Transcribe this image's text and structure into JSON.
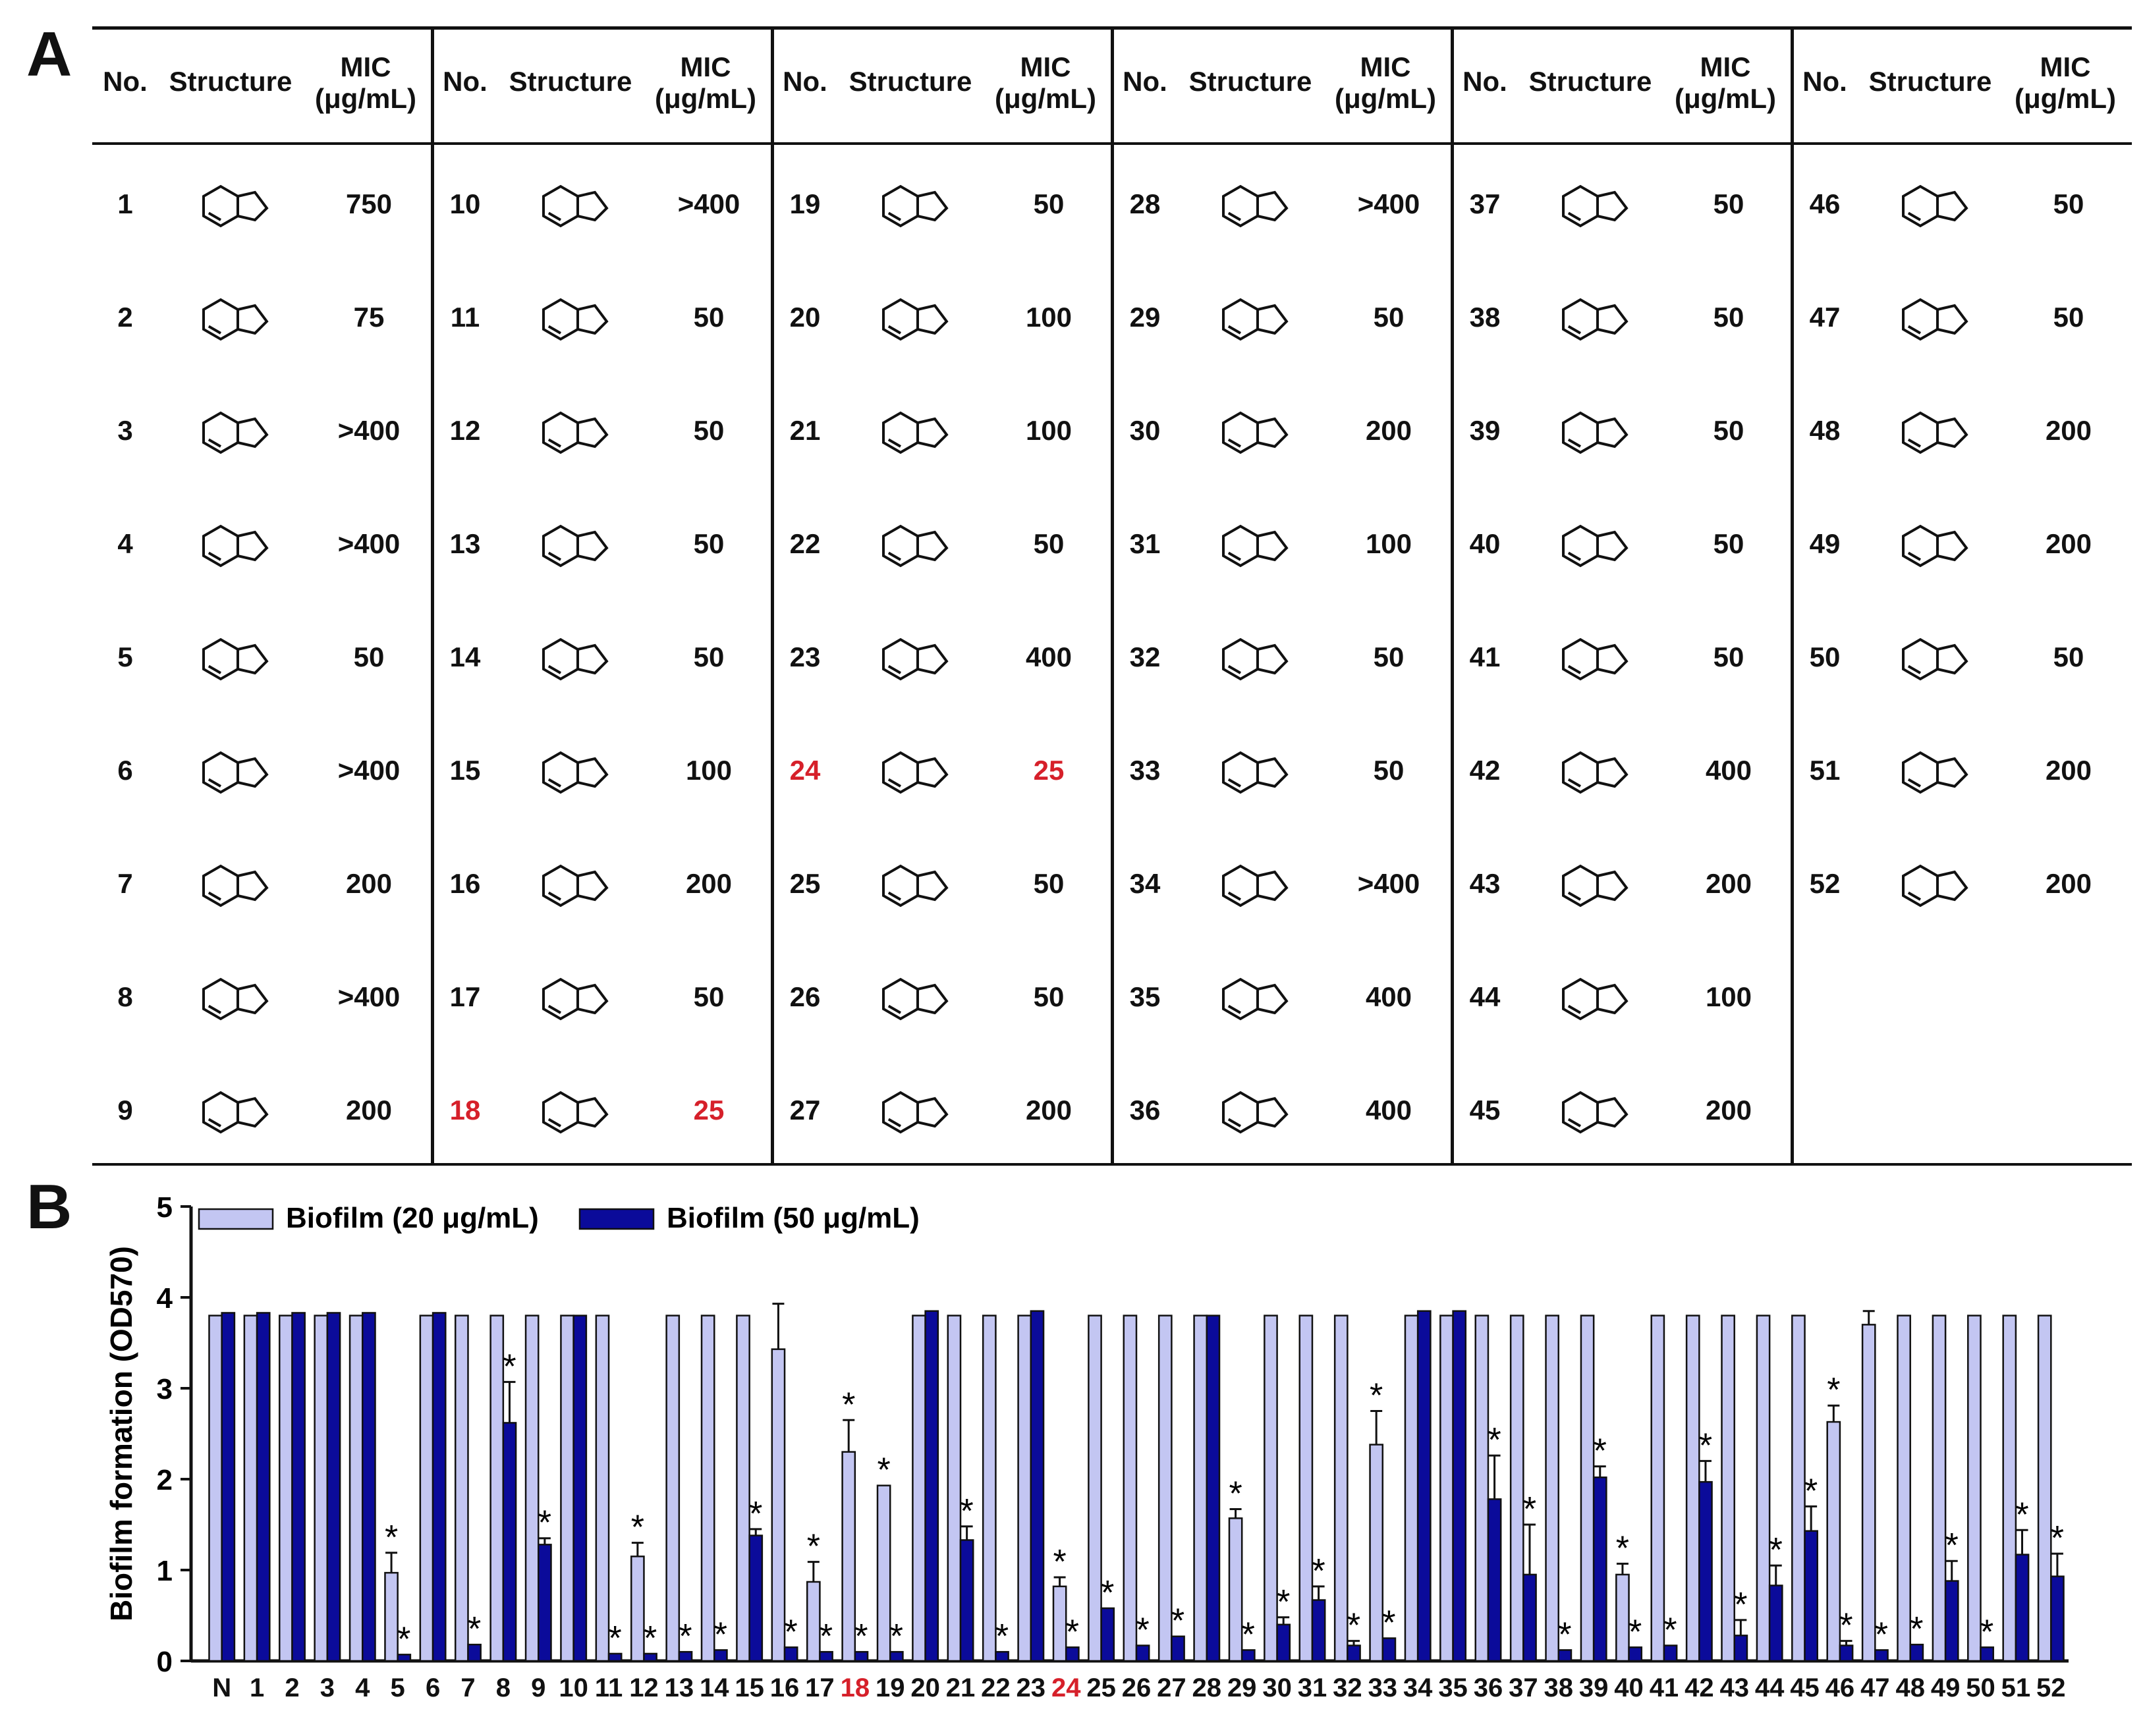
{
  "panel_labels": {
    "a": "A",
    "b": "B"
  },
  "table": {
    "headers": {
      "no": "No.",
      "structure": "Structure",
      "mic_line1": "MIC",
      "mic_line2": "(μg/mL)"
    },
    "highlight_color": "#d6202a",
    "columns": [
      [
        {
          "no": "1",
          "mic": "750",
          "hl": false
        },
        {
          "no": "2",
          "mic": "75",
          "hl": false
        },
        {
          "no": "3",
          "mic": ">400",
          "hl": false
        },
        {
          "no": "4",
          "mic": ">400",
          "hl": false
        },
        {
          "no": "5",
          "mic": "50",
          "hl": false
        },
        {
          "no": "6",
          "mic": ">400",
          "hl": false
        },
        {
          "no": "7",
          "mic": "200",
          "hl": false
        },
        {
          "no": "8",
          "mic": ">400",
          "hl": false
        },
        {
          "no": "9",
          "mic": "200",
          "hl": false
        }
      ],
      [
        {
          "no": "10",
          "mic": ">400",
          "hl": false
        },
        {
          "no": "11",
          "mic": "50",
          "hl": false
        },
        {
          "no": "12",
          "mic": "50",
          "hl": false
        },
        {
          "no": "13",
          "mic": "50",
          "hl": false
        },
        {
          "no": "14",
          "mic": "50",
          "hl": false
        },
        {
          "no": "15",
          "mic": "100",
          "hl": false
        },
        {
          "no": "16",
          "mic": "200",
          "hl": false
        },
        {
          "no": "17",
          "mic": "50",
          "hl": false
        },
        {
          "no": "18",
          "mic": "25",
          "hl": true
        }
      ],
      [
        {
          "no": "19",
          "mic": "50",
          "hl": false
        },
        {
          "no": "20",
          "mic": "100",
          "hl": false
        },
        {
          "no": "21",
          "mic": "100",
          "hl": false
        },
        {
          "no": "22",
          "mic": "50",
          "hl": false
        },
        {
          "no": "23",
          "mic": "400",
          "hl": false
        },
        {
          "no": "24",
          "mic": "25",
          "hl": true
        },
        {
          "no": "25",
          "mic": "50",
          "hl": false
        },
        {
          "no": "26",
          "mic": "50",
          "hl": false
        },
        {
          "no": "27",
          "mic": "200",
          "hl": false
        }
      ],
      [
        {
          "no": "28",
          "mic": ">400",
          "hl": false
        },
        {
          "no": "29",
          "mic": "50",
          "hl": false
        },
        {
          "no": "30",
          "mic": "200",
          "hl": false
        },
        {
          "no": "31",
          "mic": "100",
          "hl": false
        },
        {
          "no": "32",
          "mic": "50",
          "hl": false
        },
        {
          "no": "33",
          "mic": "50",
          "hl": false
        },
        {
          "no": "34",
          "mic": ">400",
          "hl": false
        },
        {
          "no": "35",
          "mic": "400",
          "hl": false
        },
        {
          "no": "36",
          "mic": "400",
          "hl": false
        }
      ],
      [
        {
          "no": "37",
          "mic": "50",
          "hl": false
        },
        {
          "no": "38",
          "mic": "50",
          "hl": false
        },
        {
          "no": "39",
          "mic": "50",
          "hl": false
        },
        {
          "no": "40",
          "mic": "50",
          "hl": false
        },
        {
          "no": "41",
          "mic": "50",
          "hl": false
        },
        {
          "no": "42",
          "mic": "400",
          "hl": false
        },
        {
          "no": "43",
          "mic": "200",
          "hl": false
        },
        {
          "no": "44",
          "mic": "100",
          "hl": false
        },
        {
          "no": "45",
          "mic": "200",
          "hl": false
        }
      ],
      [
        {
          "no": "46",
          "mic": "50",
          "hl": false
        },
        {
          "no": "47",
          "mic": "50",
          "hl": false
        },
        {
          "no": "48",
          "mic": "200",
          "hl": false
        },
        {
          "no": "49",
          "mic": "200",
          "hl": false
        },
        {
          "no": "50",
          "mic": "50",
          "hl": false
        },
        {
          "no": "51",
          "mic": "200",
          "hl": false
        },
        {
          "no": "52",
          "mic": "200",
          "hl": false
        }
      ]
    ]
  },
  "chart_data": {
    "type": "bar",
    "title": "",
    "xlabel": "",
    "ylabel": "Biofilm formation (OD570)",
    "ylim": [
      0,
      5
    ],
    "yticks": [
      0,
      1,
      2,
      3,
      4,
      5
    ],
    "grid": false,
    "legend_position": "top-left",
    "categories": [
      "N",
      "1",
      "2",
      "3",
      "4",
      "5",
      "6",
      "7",
      "8",
      "9",
      "10",
      "11",
      "12",
      "13",
      "14",
      "15",
      "16",
      "17",
      "18",
      "19",
      "20",
      "21",
      "22",
      "23",
      "24",
      "25",
      "26",
      "27",
      "28",
      "29",
      "30",
      "31",
      "32",
      "33",
      "34",
      "35",
      "36",
      "37",
      "38",
      "39",
      "40",
      "41",
      "42",
      "43",
      "44",
      "45",
      "46",
      "47",
      "48",
      "49",
      "50",
      "51",
      "52"
    ],
    "highlight_categories": [
      "18",
      "24"
    ],
    "series": [
      {
        "name": "Biofilm (20 μg/mL)",
        "color": "#c3c6f2",
        "values": [
          3.8,
          3.8,
          3.8,
          3.8,
          3.8,
          0.97,
          3.8,
          3.8,
          3.8,
          3.8,
          3.8,
          3.8,
          1.15,
          3.8,
          3.8,
          3.8,
          3.43,
          0.87,
          2.3,
          1.93,
          3.8,
          3.8,
          3.8,
          3.8,
          0.82,
          3.8,
          3.8,
          3.8,
          3.8,
          1.57,
          3.8,
          3.8,
          3.8,
          2.38,
          3.8,
          3.8,
          3.8,
          3.8,
          3.8,
          3.8,
          0.95,
          3.8,
          3.8,
          3.8,
          3.8,
          3.8,
          2.63,
          3.7,
          3.8,
          3.8,
          3.8,
          3.8,
          3.8
        ],
        "errors": [
          0,
          0,
          0,
          0,
          0,
          0.22,
          0,
          0,
          0,
          0,
          0,
          0,
          0.15,
          0,
          0,
          0,
          0.5,
          0.22,
          0.35,
          0,
          0,
          0,
          0,
          0,
          0.1,
          0,
          0,
          0,
          0,
          0.1,
          0,
          0,
          0,
          0.37,
          0,
          0,
          0,
          0,
          0,
          0,
          0.12,
          0,
          0,
          0,
          0,
          0,
          0.18,
          0.15,
          0,
          0,
          0,
          0,
          0
        ],
        "significant": [
          false,
          false,
          false,
          false,
          false,
          true,
          false,
          false,
          false,
          false,
          false,
          false,
          true,
          false,
          false,
          false,
          false,
          true,
          true,
          true,
          false,
          false,
          false,
          false,
          true,
          false,
          false,
          false,
          false,
          true,
          false,
          false,
          false,
          true,
          false,
          false,
          false,
          false,
          false,
          false,
          true,
          false,
          false,
          false,
          false,
          false,
          true,
          false,
          false,
          false,
          false,
          false,
          false
        ]
      },
      {
        "name": "Biofilm (50 μg/mL)",
        "color": "#0b0b9a",
        "values": [
          3.83,
          3.83,
          3.83,
          3.83,
          3.83,
          0.07,
          3.83,
          0.18,
          2.62,
          1.28,
          3.8,
          0.08,
          0.08,
          0.1,
          0.12,
          1.38,
          0.15,
          0.1,
          0.1,
          0.1,
          3.85,
          1.33,
          0.1,
          3.85,
          0.15,
          0.58,
          0.17,
          0.27,
          3.8,
          0.12,
          0.4,
          0.67,
          0.17,
          0.25,
          3.85,
          3.85,
          1.78,
          0.95,
          0.12,
          2.02,
          0.15,
          0.17,
          1.97,
          0.28,
          0.83,
          1.43,
          0.17,
          0.12,
          0.18,
          0.88,
          0.15,
          1.17,
          0.93
        ],
        "errors": [
          0,
          0,
          0,
          0,
          0,
          0,
          0,
          0,
          0.45,
          0.07,
          0,
          0,
          0,
          0,
          0,
          0.07,
          0,
          0,
          0,
          0,
          0,
          0.15,
          0,
          0,
          0,
          0,
          0,
          0,
          0,
          0,
          0.08,
          0.15,
          0.05,
          0,
          0,
          0,
          0.48,
          0.55,
          0,
          0.12,
          0,
          0,
          0.23,
          0.17,
          0.22,
          0.27,
          0.05,
          0,
          0,
          0.22,
          0,
          0.27,
          0.25
        ],
        "significant": [
          false,
          false,
          false,
          false,
          false,
          true,
          false,
          true,
          true,
          true,
          false,
          true,
          true,
          true,
          true,
          true,
          true,
          true,
          true,
          true,
          false,
          true,
          true,
          false,
          true,
          true,
          true,
          true,
          false,
          true,
          true,
          true,
          true,
          true,
          false,
          false,
          true,
          true,
          true,
          true,
          true,
          true,
          true,
          true,
          true,
          true,
          true,
          true,
          true,
          true,
          true,
          true,
          true
        ]
      }
    ],
    "significance_marker": "*"
  }
}
